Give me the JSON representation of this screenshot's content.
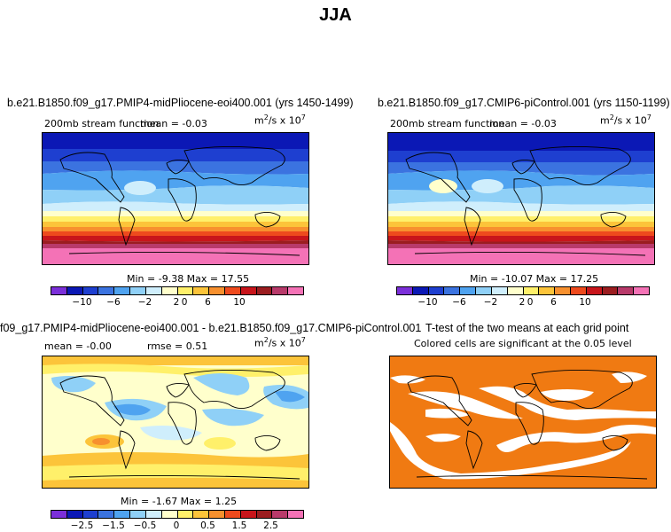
{
  "main_title": "JJA",
  "panels": {
    "top_left": {
      "title": "b.e21.B1850.f09_g17.PMIP4-midPliocene-eoi400.001 (yrs 1450-1499)",
      "variable": "200mb stream function",
      "mean_label": "mean =   -0.03",
      "units_base": "m",
      "units_mid": "/s x 10",
      "units_sup1": "2",
      "units_sup2": "7",
      "minmax": "Min =  -9.38  Max =  17.55"
    },
    "top_right": {
      "title": "b.e21.B1850.f09_g17.CMIP6-piControl.001 (yrs 1150-1199)",
      "variable": "200mb stream function",
      "mean_label": "mean =   -0.03",
      "units_base": "m",
      "units_mid": "/s x 10",
      "units_sup1": "2",
      "units_sup2": "7",
      "minmax": "Min = -10.07  Max =  17.25"
    },
    "bottom_left": {
      "title": "f09_g17.PMIP4-midPliocene-eoi400.001 - b.e21.B1850.f09_g17.CMIP6-piControl.001",
      "mean_label": "mean =   -0.00",
      "rmse_label": "rmse =     0.51",
      "units_base": "m",
      "units_mid": "/s x 10",
      "units_sup1": "2",
      "units_sup2": "7",
      "minmax": "Min =  -1.67  Max =    1.25"
    },
    "bottom_right": {
      "title": "T-test of the two means at each grid point",
      "subtitle": "Colored cells are significant at the 0.05 level"
    }
  },
  "colorbar_top": {
    "labels": [
      "−10",
      "−6",
      "−2",
      "2",
      "6",
      "10"
    ],
    "zero_label": "0"
  },
  "colorbar_bottom": {
    "labels": [
      "−2.5",
      "−1.5",
      "−0.5",
      "0",
      "0.5",
      "1.5",
      "2.5"
    ]
  },
  "colors": {
    "palette": [
      "#7b2fd9",
      "#0b18b5",
      "#1e3fd0",
      "#3b73e0",
      "#4fa3f0",
      "#8fd0f7",
      "#cfeefc",
      "#ffffcc",
      "#fff06a",
      "#fcc43a",
      "#f7902e",
      "#ee4a1d",
      "#c8151b",
      "#9b1d20",
      "#b83a6a",
      "#f472b6"
    ],
    "significance": "#f07a12",
    "ocean_white": "#ffffff"
  }
}
